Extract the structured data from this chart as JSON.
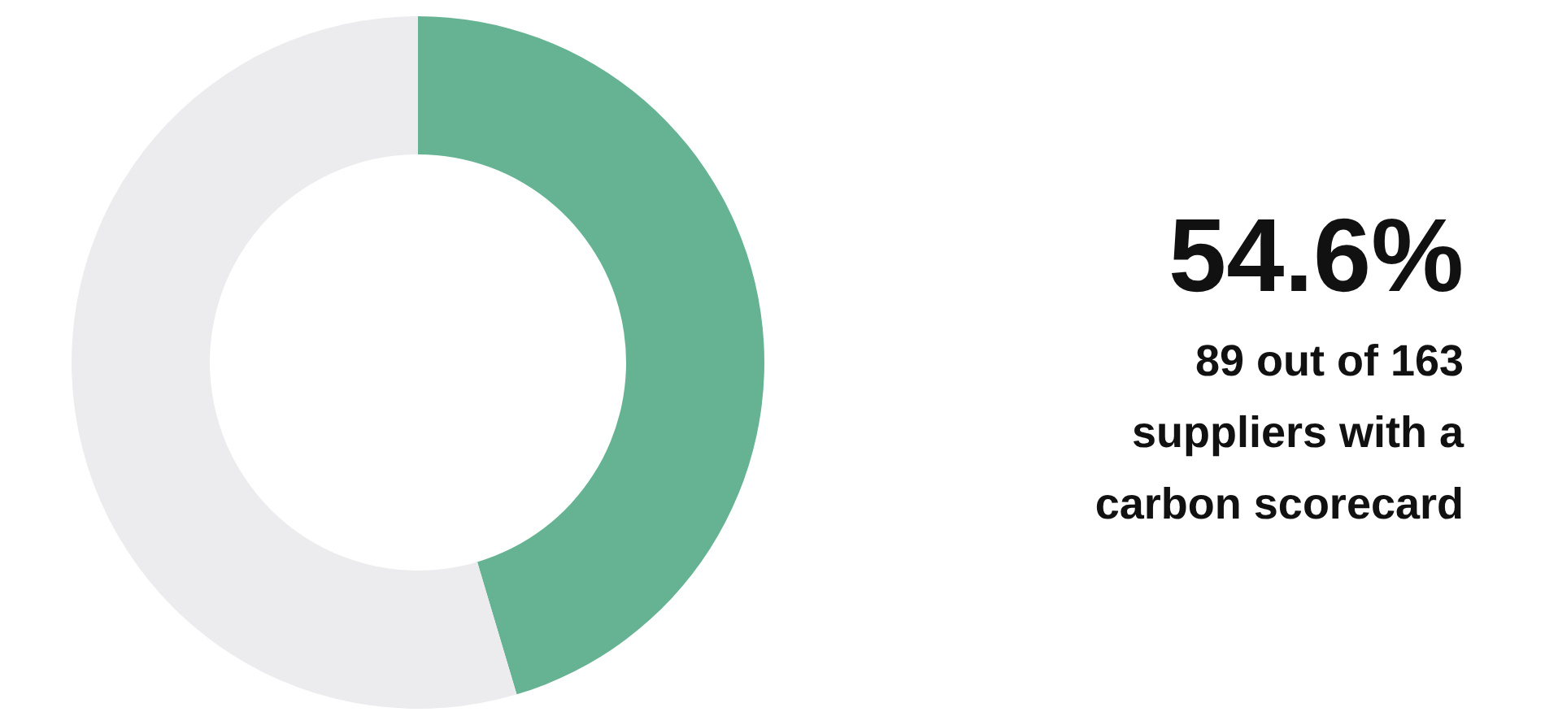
{
  "chart_data": {
    "type": "donut",
    "categories": [
      null,
      null
    ],
    "values": [
      45.4,
      54.6
    ],
    "colors": [
      "#65b393",
      "#ececee"
    ],
    "annotations": [
      "54.6%",
      "89 out of 163\nsuppliers with a\ncarbon scorecard"
    ]
  }
}
